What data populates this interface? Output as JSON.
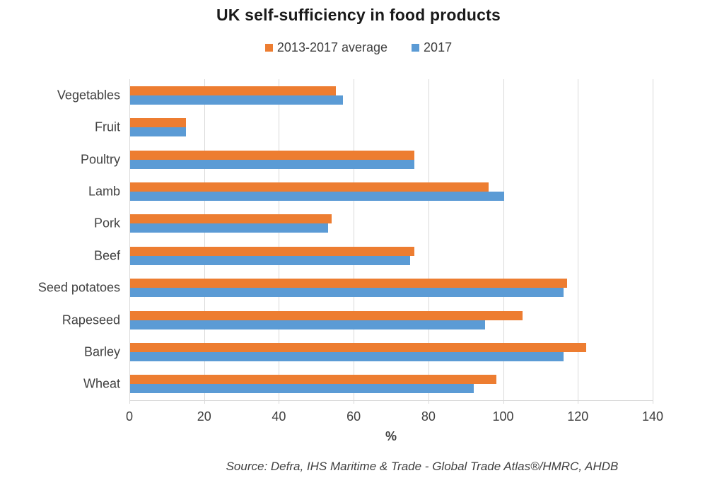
{
  "title": "UK self-sufficiency in food products",
  "legend": [
    {
      "label": "2013-2017 average",
      "color": "#ED7D31"
    },
    {
      "label": "2017",
      "color": "#5B9BD5"
    }
  ],
  "source": "Source: Defra, IHS Maritime & Trade - Global Trade Atlas®/HMRC, AHDB",
  "chart_data": {
    "type": "bar",
    "orientation": "horizontal",
    "title": "UK self-sufficiency in food products",
    "categories": [
      "Vegetables",
      "Fruit",
      "Poultry",
      "Lamb",
      "Pork",
      "Beef",
      "Seed potatoes",
      "Rapeseed",
      "Barley",
      "Wheat"
    ],
    "series": [
      {
        "name": "2013-2017 average",
        "color": "#ED7D31",
        "values": [
          55,
          15,
          76,
          96,
          54,
          76,
          117,
          105,
          122,
          98
        ]
      },
      {
        "name": "2017",
        "color": "#5B9BD5",
        "values": [
          57,
          15,
          76,
          100,
          53,
          75,
          116,
          95,
          116,
          92
        ]
      }
    ],
    "xlabel": "%",
    "ylabel": "",
    "xlim": [
      0,
      140
    ],
    "xticks": [
      0,
      20,
      40,
      60,
      80,
      100,
      120,
      140
    ],
    "grid": true,
    "legend_position": "top",
    "colors": {
      "grid": "#D9D9D9",
      "axis": "#D9D9D9",
      "tick_text": "#404040",
      "title_text": "#1A1A1A"
    }
  }
}
